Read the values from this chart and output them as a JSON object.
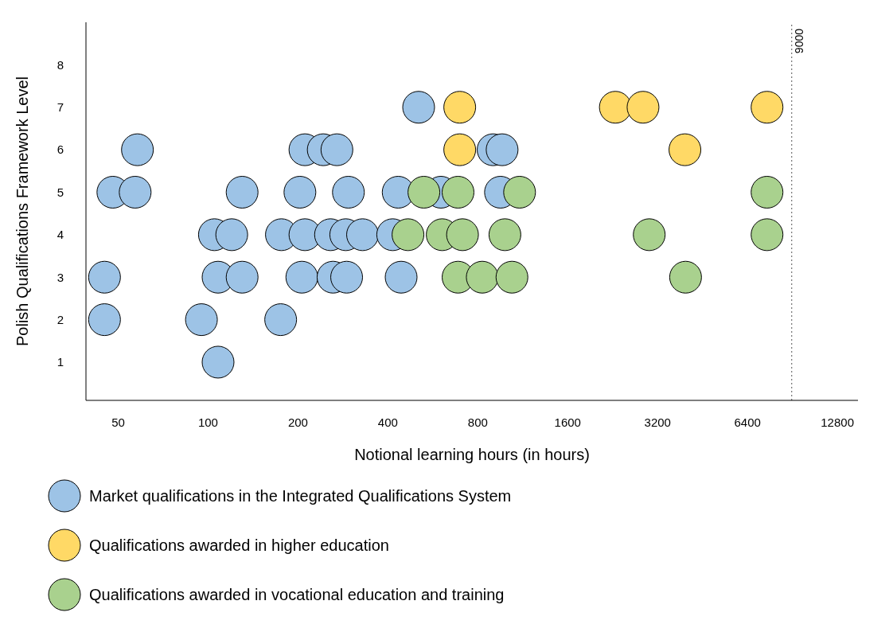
{
  "chart_data": {
    "type": "scatter",
    "xlabel": "Notional learning hours (in hours)",
    "ylabel": "Polish Qualifications Framework Level",
    "log": "x",
    "xlim": [
      39,
      15000
    ],
    "xticks": [
      50,
      100,
      200,
      400,
      800,
      1600,
      3200,
      6400,
      12800
    ],
    "ylim": [
      0.1,
      9
    ],
    "yticks": [
      1,
      2,
      3,
      4,
      5,
      6,
      7,
      8
    ],
    "grid": false,
    "legend": "bottom",
    "marker": "circle",
    "ref_lines": [
      {
        "axis": "x",
        "value": 9000,
        "label": "9000",
        "line_style": "dotted",
        "color": "#555555"
      }
    ],
    "series": [
      {
        "name": "Market qualifications in the Integrated Qualifications System",
        "color": "#9dc3e6",
        "x": [
          507,
          58,
          211,
          243,
          270,
          900,
          965,
          48,
          57,
          130,
          203,
          295,
          433,
          602,
          953,
          105,
          120,
          176,
          211,
          257,
          289,
          329,
          415,
          45,
          108,
          130,
          206,
          262,
          291,
          443,
          45,
          95,
          175,
          108
        ],
        "values": [
          7,
          6,
          6,
          6,
          6,
          6,
          6,
          5,
          5,
          5,
          5,
          5,
          5,
          5,
          5,
          4,
          4,
          4,
          4,
          4,
          4,
          4,
          4,
          3,
          3,
          3,
          3,
          3,
          3,
          3,
          2,
          2,
          2,
          1
        ]
      },
      {
        "name": "Qualifications awarded in higher education",
        "color": "#ffd966",
        "x": [
          696,
          2310,
          2860,
          7440,
          696,
          3950
        ],
        "values": [
          7,
          7,
          7,
          7,
          6,
          6
        ]
      },
      {
        "name": "Qualifications awarded in vocational education and training",
        "color": "#a9d18e",
        "x": [
          528,
          687,
          1104,
          7440,
          467,
          608,
          711,
          986,
          3000,
          7440,
          687,
          828,
          1041,
          3970
        ],
        "values": [
          5,
          5,
          5,
          5,
          4,
          4,
          4,
          4,
          4,
          4,
          3,
          3,
          3,
          3
        ]
      }
    ]
  }
}
